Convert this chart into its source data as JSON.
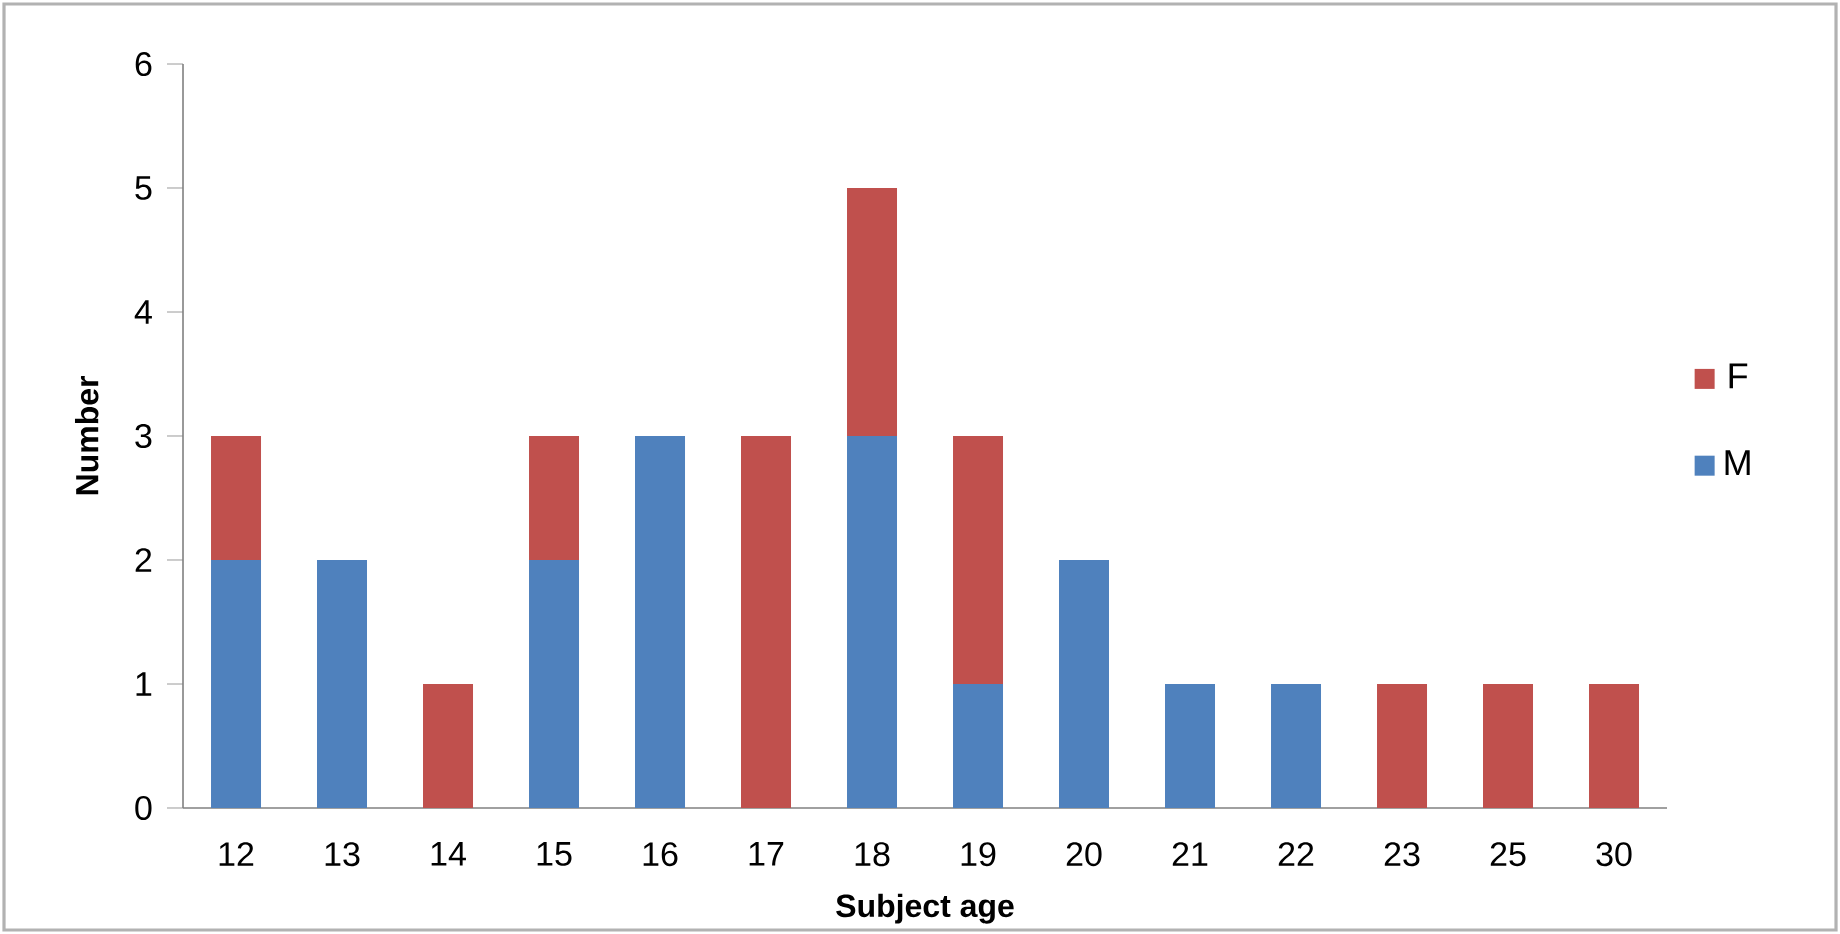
{
  "chart_data": {
    "type": "bar",
    "stacked": true,
    "xlabel": "Subject age",
    "ylabel": "Number",
    "categories": [
      "12",
      "13",
      "14",
      "15",
      "16",
      "17",
      "18",
      "19",
      "20",
      "21",
      "22",
      "23",
      "25",
      "30"
    ],
    "series": [
      {
        "name": "M",
        "color": "#4f81bd",
        "values": [
          2,
          2,
          0,
          2,
          3,
          0,
          3,
          1,
          2,
          1,
          1,
          0,
          0,
          0
        ]
      },
      {
        "name": "F",
        "color": "#c0504d",
        "values": [
          1,
          0,
          1,
          1,
          0,
          3,
          2,
          2,
          0,
          0,
          0,
          1,
          1,
          1
        ]
      }
    ],
    "ylim": [
      0,
      6
    ],
    "yticks": [
      0,
      1,
      2,
      3,
      4,
      5,
      6
    ],
    "grid": false,
    "legend": "right"
  }
}
